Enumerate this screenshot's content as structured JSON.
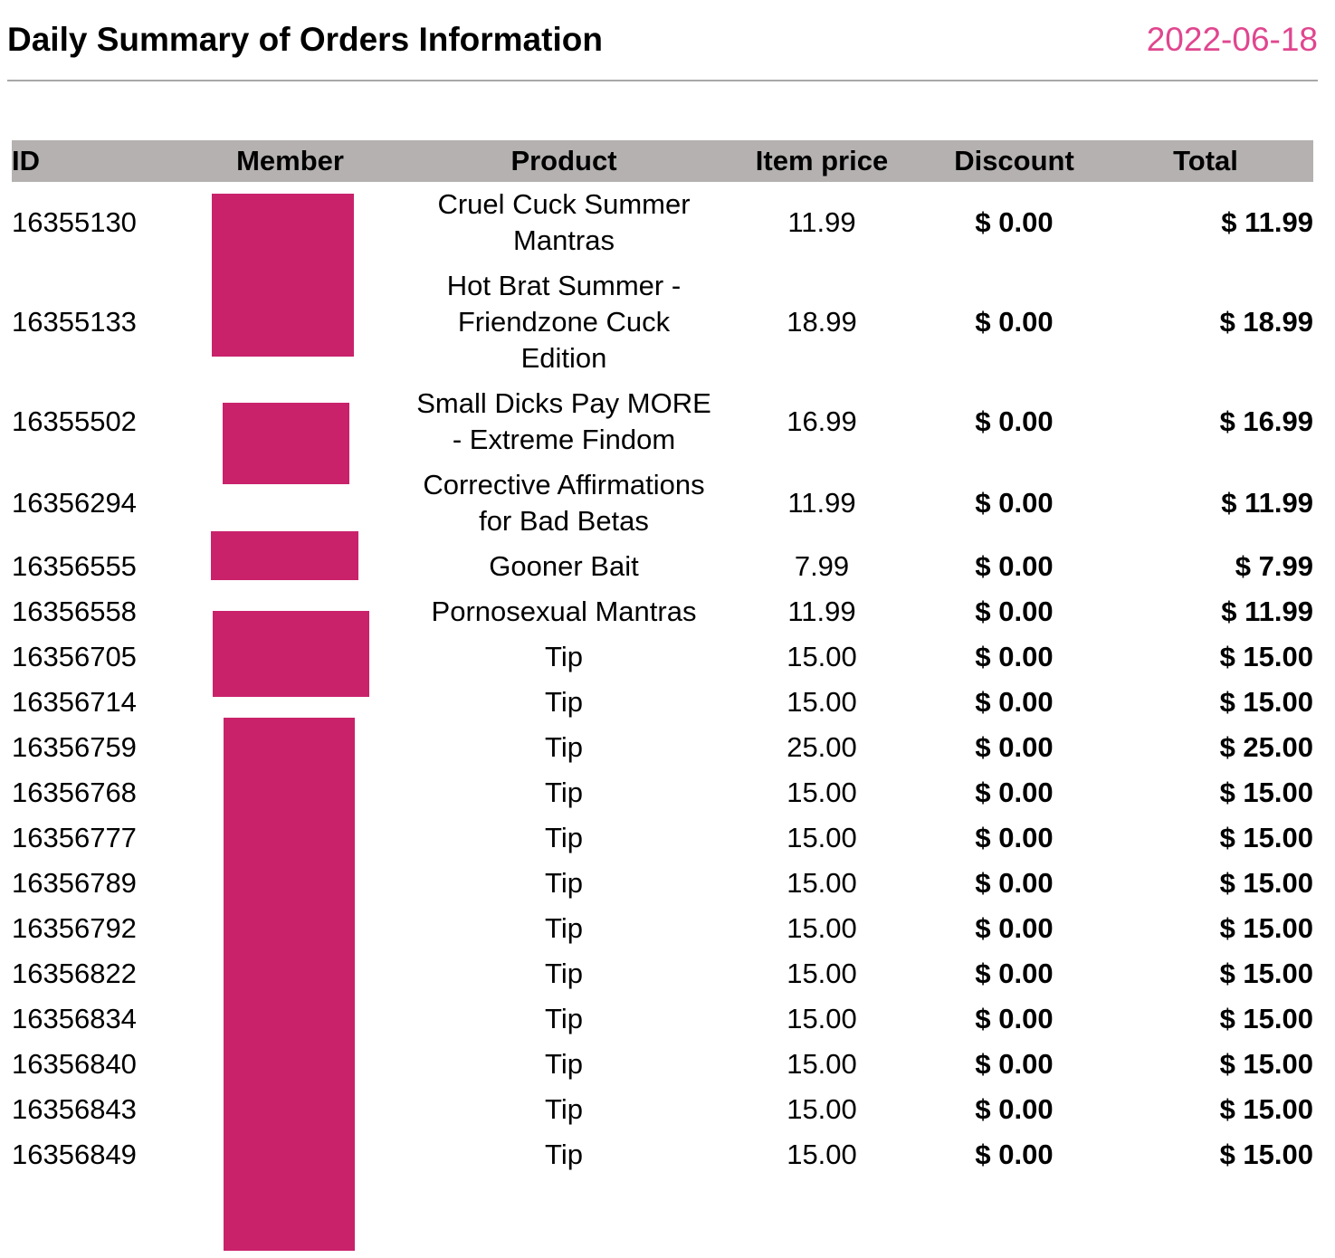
{
  "header": {
    "title": "Daily Summary of Orders Information",
    "date": "2022-06-18"
  },
  "colors": {
    "accent": "#e0468f",
    "header_bg": "#b5b1b1",
    "redaction": "#c9226b",
    "rule": "#a8a8a8"
  },
  "table": {
    "columns": [
      "ID",
      "Member",
      "Product",
      "Item price",
      "Discount",
      "Total"
    ],
    "rows": [
      {
        "id": "16355130",
        "product": "Cruel Cuck Summer Mantras",
        "price": "11.99",
        "discount": "$ 0.00",
        "total": "$ 11.99"
      },
      {
        "id": "16355133",
        "product": "Hot Brat Summer - Friendzone Cuck Edition",
        "price": "18.99",
        "discount": "$ 0.00",
        "total": "$ 18.99"
      },
      {
        "id": "16355502",
        "product": "Small Dicks Pay MORE - Extreme Findom",
        "price": "16.99",
        "discount": "$ 0.00",
        "total": "$ 16.99"
      },
      {
        "id": "16356294",
        "product": "Corrective Affirmations for Bad Betas",
        "price": "11.99",
        "discount": "$ 0.00",
        "total": "$ 11.99"
      },
      {
        "id": "16356555",
        "product": "Gooner Bait",
        "price": "7.99",
        "discount": "$ 0.00",
        "total": "$ 7.99"
      },
      {
        "id": "16356558",
        "product": "Pornosexual Mantras",
        "price": "11.99",
        "discount": "$ 0.00",
        "total": "$ 11.99"
      },
      {
        "id": "16356705",
        "product": "Tip",
        "price": "15.00",
        "discount": "$ 0.00",
        "total": "$ 15.00"
      },
      {
        "id": "16356714",
        "product": "Tip",
        "price": "15.00",
        "discount": "$ 0.00",
        "total": "$ 15.00"
      },
      {
        "id": "16356759",
        "product": "Tip",
        "price": "25.00",
        "discount": "$ 0.00",
        "total": "$ 25.00"
      },
      {
        "id": "16356768",
        "product": "Tip",
        "price": "15.00",
        "discount": "$ 0.00",
        "total": "$ 15.00"
      },
      {
        "id": "16356777",
        "product": "Tip",
        "price": "15.00",
        "discount": "$ 0.00",
        "total": "$ 15.00"
      },
      {
        "id": "16356789",
        "product": "Tip",
        "price": "15.00",
        "discount": "$ 0.00",
        "total": "$ 15.00"
      },
      {
        "id": "16356792",
        "product": "Tip",
        "price": "15.00",
        "discount": "$ 0.00",
        "total": "$ 15.00"
      },
      {
        "id": "16356822",
        "product": "Tip",
        "price": "15.00",
        "discount": "$ 0.00",
        "total": "$ 15.00"
      },
      {
        "id": "16356834",
        "product": "Tip",
        "price": "15.00",
        "discount": "$ 0.00",
        "total": "$ 15.00"
      },
      {
        "id": "16356840",
        "product": "Tip",
        "price": "15.00",
        "discount": "$ 0.00",
        "total": "$ 15.00"
      },
      {
        "id": "16356843",
        "product": "Tip",
        "price": "15.00",
        "discount": "$ 0.00",
        "total": "$ 15.00"
      },
      {
        "id": "16356849",
        "product": "Tip",
        "price": "15.00",
        "discount": "$ 0.00",
        "total": "$ 15.00"
      }
    ]
  }
}
